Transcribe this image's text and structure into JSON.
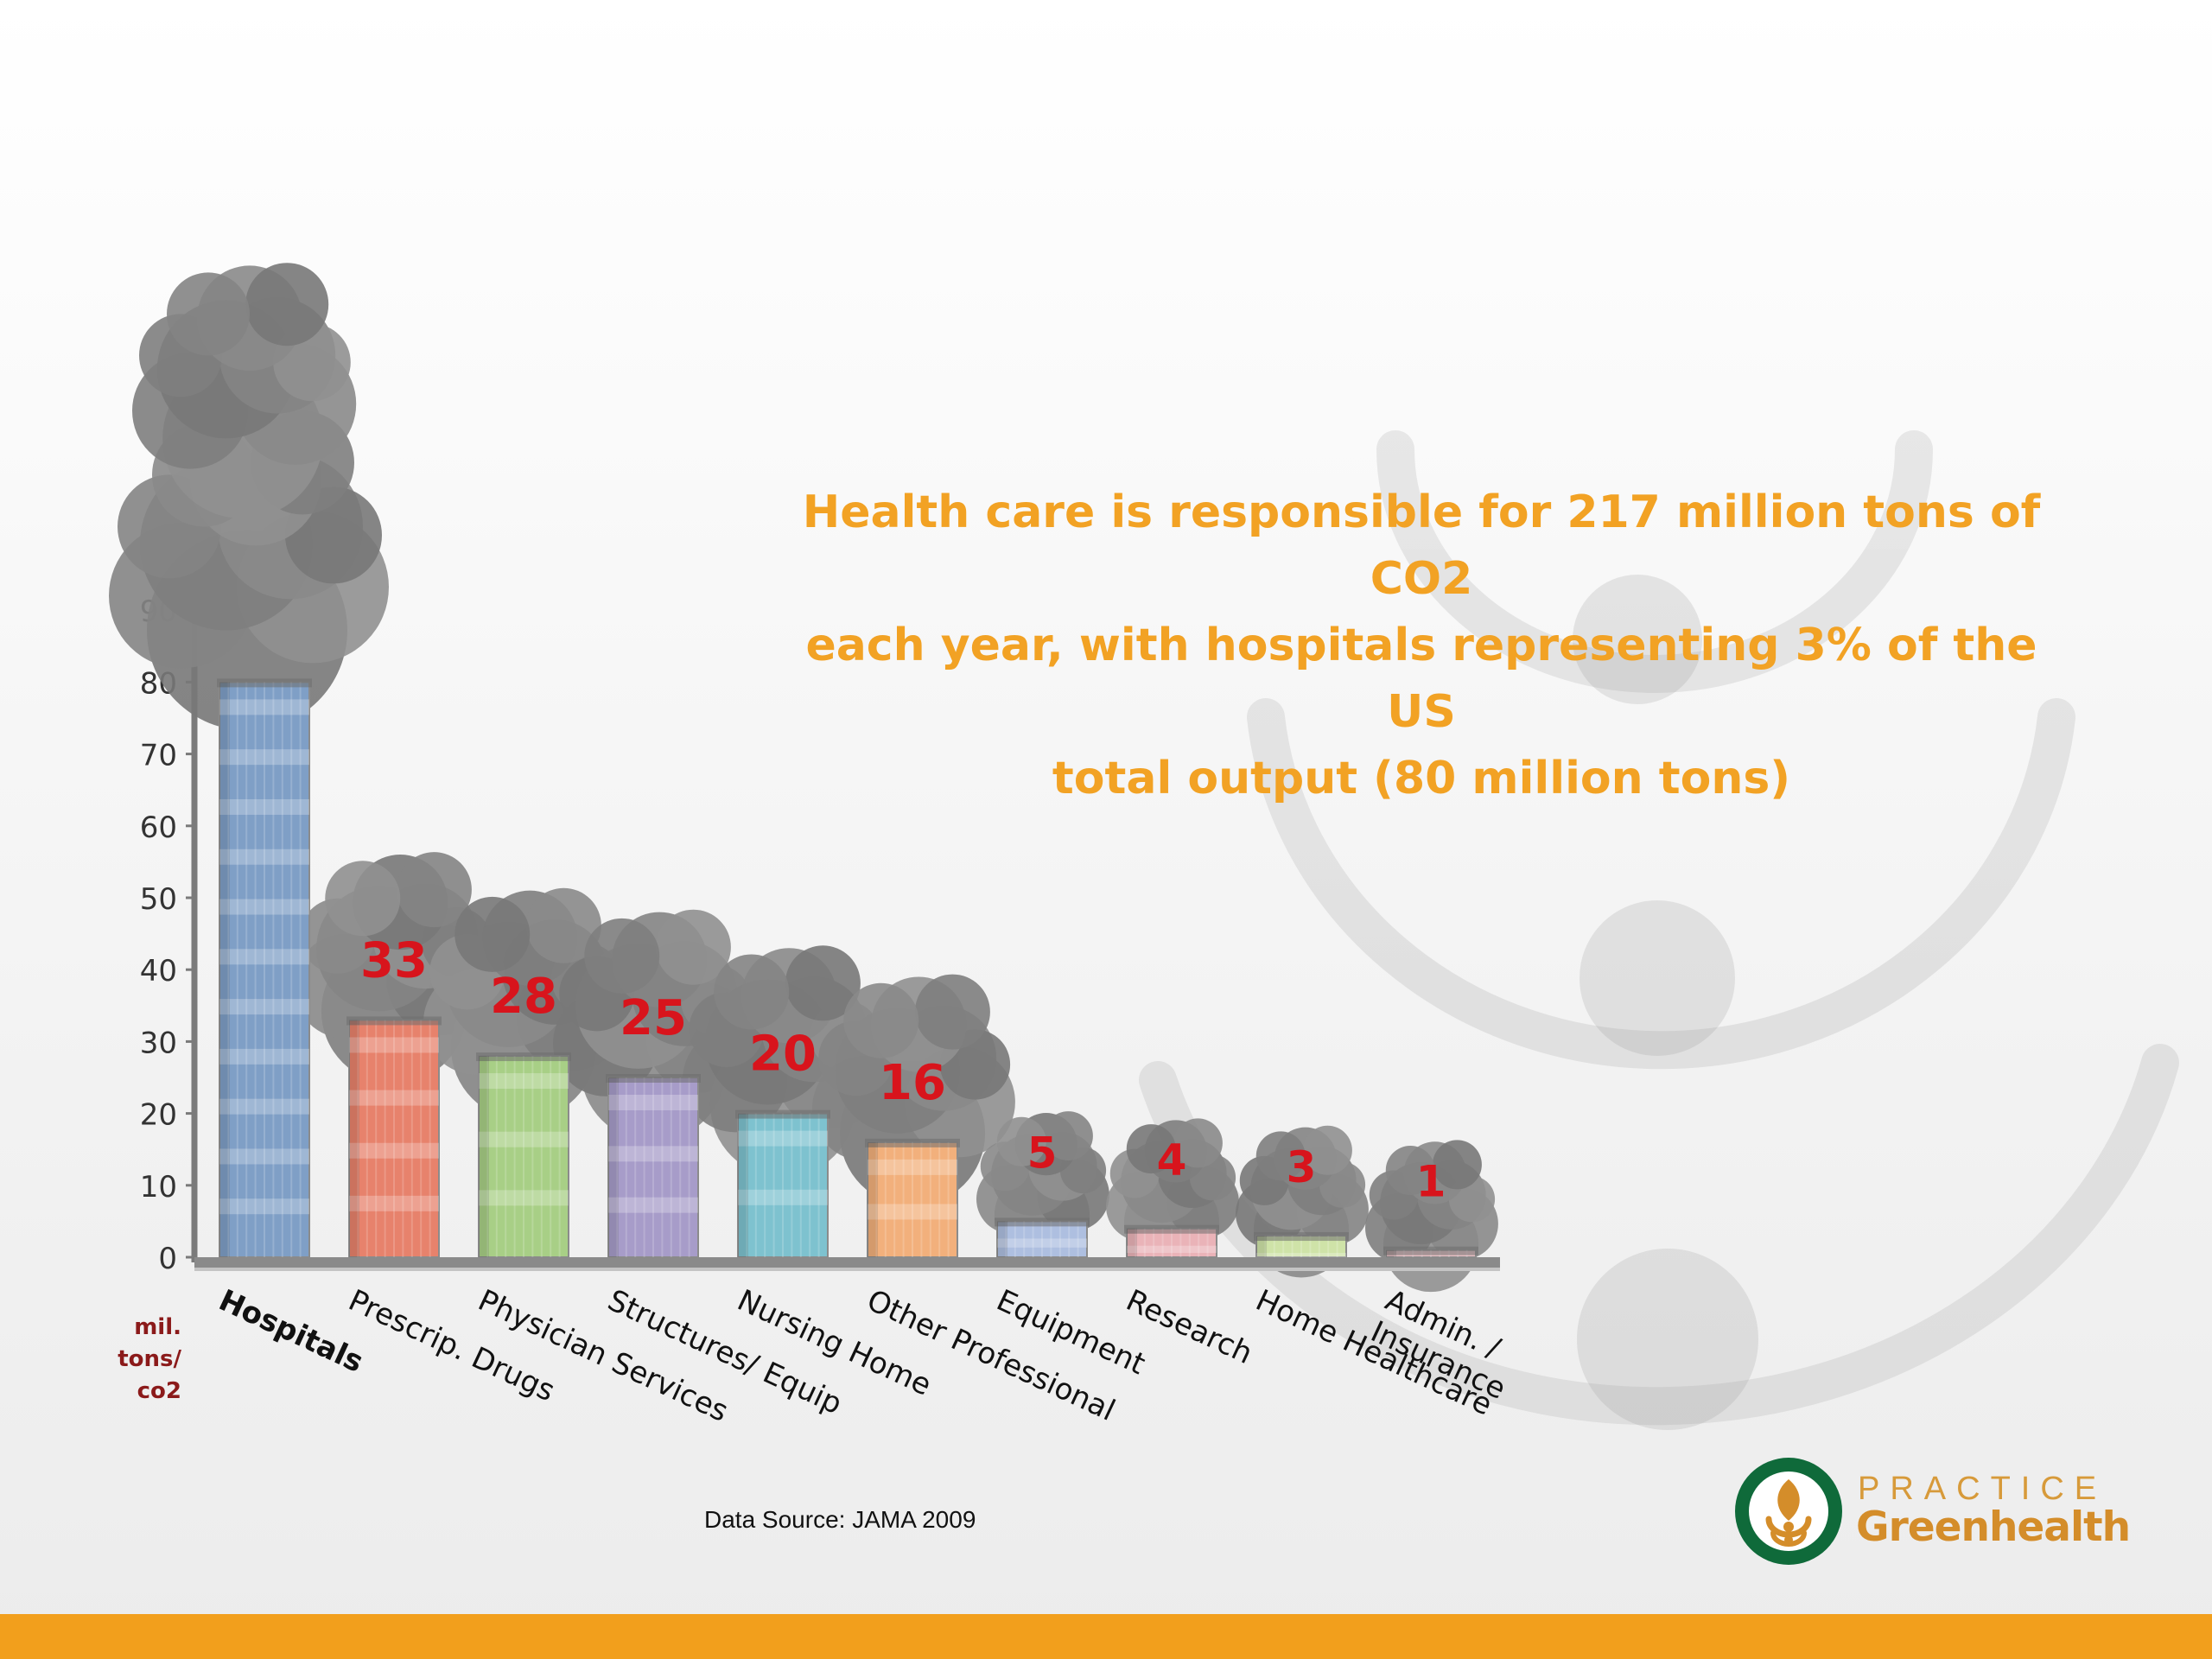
{
  "headline": {
    "line1": "Health care is responsible for 217 million tons of CO2",
    "line2": "each year, with hospitals representing 3% of the US",
    "line3": "total output (80 million tons)"
  },
  "source_text": "Data Source: JAMA 2009",
  "unit_label": [
    "mil.",
    "tons/",
    "co2"
  ],
  "logo": {
    "top": "PRACTICE",
    "bottom": "Greenhealth"
  },
  "colors": {
    "headline": "#f2a224",
    "value_label": "#d8141c",
    "unit_label": "#8b1a1a",
    "bottom_bar": "#f29f1c",
    "logo_green": "#0f6a3a",
    "logo_orange": "#d48d2a"
  },
  "chart_data": {
    "type": "bar",
    "title": "",
    "xlabel": "",
    "ylabel": "mil. tons/ co2",
    "ylim": [
      0,
      90
    ],
    "yticks": [
      0,
      10,
      20,
      30,
      40,
      50,
      60,
      70,
      80,
      90
    ],
    "grid": false,
    "legend": "none",
    "categories": [
      "Hospitals",
      "Prescrip. Drugs",
      "Physician Services",
      "Structures/ Equip",
      "Nursing Home",
      "Other Professional",
      "Equipment",
      "Research",
      "Home Healthcare",
      "Admin. / Insurance"
    ],
    "values": [
      80,
      33,
      28,
      25,
      20,
      16,
      5,
      4,
      3,
      1
    ],
    "data_labels": [
      "",
      "33",
      "28",
      "25",
      "20",
      "16",
      "5",
      "4",
      "3",
      "1"
    ],
    "bar_colors": [
      "#7f9fc6",
      "#e7826c",
      "#a8cf86",
      "#a79cc9",
      "#7ec2cf",
      "#f2b07c",
      "#aebfe0",
      "#eab3b8",
      "#cfe3a8",
      "#e9c1c6"
    ]
  }
}
